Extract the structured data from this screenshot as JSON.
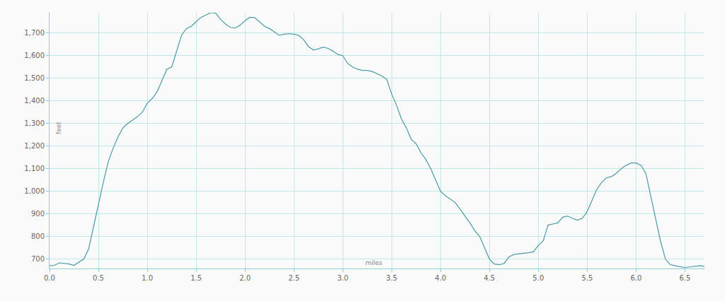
{
  "chart_data": {
    "type": "line",
    "x_label": "miles",
    "y_label": "feet",
    "color": "#4b9ba6",
    "grid": true,
    "x": [
      0.0,
      0.05,
      0.1,
      0.15,
      0.2,
      0.25,
      0.3,
      0.35,
      0.4,
      0.45,
      0.5,
      0.55,
      0.6,
      0.65,
      0.7,
      0.75,
      0.8,
      0.85,
      0.9,
      0.95,
      1.0,
      1.05,
      1.1,
      1.15,
      1.2,
      1.25,
      1.3,
      1.35,
      1.4,
      1.45,
      1.5,
      1.55,
      1.6,
      1.65,
      1.7,
      1.75,
      1.8,
      1.85,
      1.9,
      1.95,
      2.0,
      2.05,
      2.1,
      2.15,
      2.2,
      2.25,
      2.3,
      2.35,
      2.4,
      2.45,
      2.5,
      2.55,
      2.6,
      2.65,
      2.7,
      2.75,
      2.8,
      2.85,
      2.9,
      2.95,
      3.0,
      3.05,
      3.1,
      3.15,
      3.2,
      3.25,
      3.3,
      3.35,
      3.4,
      3.45,
      3.5,
      3.55,
      3.6,
      3.65,
      3.7,
      3.75,
      3.8,
      3.85,
      3.9,
      3.95,
      4.0,
      4.05,
      4.1,
      4.15,
      4.2,
      4.25,
      4.3,
      4.35,
      4.4,
      4.45,
      4.5,
      4.55,
      4.6,
      4.65,
      4.7,
      4.75,
      4.8,
      4.85,
      4.9,
      4.95,
      5.0,
      5.05,
      5.1,
      5.15,
      5.2,
      5.25,
      5.3,
      5.35,
      5.4,
      5.45,
      5.5,
      5.55,
      5.6,
      5.65,
      5.7,
      5.75,
      5.8,
      5.85,
      5.9,
      5.95,
      6.0,
      6.05,
      6.1,
      6.15,
      6.2,
      6.25,
      6.3,
      6.35,
      6.4,
      6.45,
      6.5,
      6.55,
      6.6,
      6.65,
      6.7
    ],
    "values": [
      670,
      672,
      683,
      680,
      678,
      672,
      685,
      700,
      745,
      845,
      940,
      1040,
      1130,
      1190,
      1240,
      1280,
      1300,
      1315,
      1330,
      1350,
      1390,
      1410,
      1440,
      1490,
      1540,
      1550,
      1620,
      1690,
      1720,
      1730,
      1750,
      1770,
      1780,
      1790,
      1788,
      1760,
      1740,
      1725,
      1722,
      1735,
      1755,
      1770,
      1768,
      1750,
      1730,
      1720,
      1705,
      1690,
      1695,
      1697,
      1695,
      1690,
      1670,
      1640,
      1625,
      1630,
      1638,
      1632,
      1620,
      1605,
      1600,
      1565,
      1550,
      1540,
      1535,
      1535,
      1530,
      1520,
      1510,
      1495,
      1430,
      1380,
      1320,
      1280,
      1230,
      1210,
      1170,
      1140,
      1100,
      1050,
      1000,
      980,
      965,
      950,
      920,
      890,
      860,
      825,
      800,
      750,
      700,
      678,
      675,
      680,
      710,
      720,
      722,
      725,
      728,
      732,
      760,
      780,
      850,
      855,
      860,
      885,
      890,
      880,
      872,
      880,
      910,
      960,
      1010,
      1040,
      1060,
      1065,
      1080,
      1100,
      1115,
      1125,
      1125,
      1115,
      1080,
      980,
      880,
      780,
      700,
      675,
      670,
      665,
      662,
      665,
      668,
      670,
      668
    ],
    "xlim": [
      0,
      6.7
    ],
    "ylim": [
      658,
      1790
    ],
    "xticks": [
      {
        "value": 0,
        "label": "0.0"
      },
      0.5,
      {
        "value": 1,
        "label": "1.0"
      },
      1.5,
      {
        "value": 2,
        "label": "2.0"
      },
      2.5,
      {
        "value": 3,
        "label": "3.0"
      },
      3.5,
      {
        "value": 4,
        "label": "4.0"
      },
      4.5,
      {
        "value": 5,
        "label": "5.0"
      },
      5.5,
      {
        "value": 6,
        "label": "6.0"
      },
      6.5
    ],
    "yticks": [
      700,
      800,
      900,
      {
        "value": 1000,
        "label": "1,000"
      },
      {
        "value": 1100,
        "label": "1,100"
      },
      {
        "value": 1200,
        "label": "1,200"
      },
      {
        "value": 1300,
        "label": "1,300"
      },
      {
        "value": 1400,
        "label": "1,400"
      },
      {
        "value": 1500,
        "label": "1,500"
      },
      {
        "value": 1600,
        "label": "1,600"
      },
      {
        "value": 1700,
        "label": "1,700"
      }
    ]
  }
}
